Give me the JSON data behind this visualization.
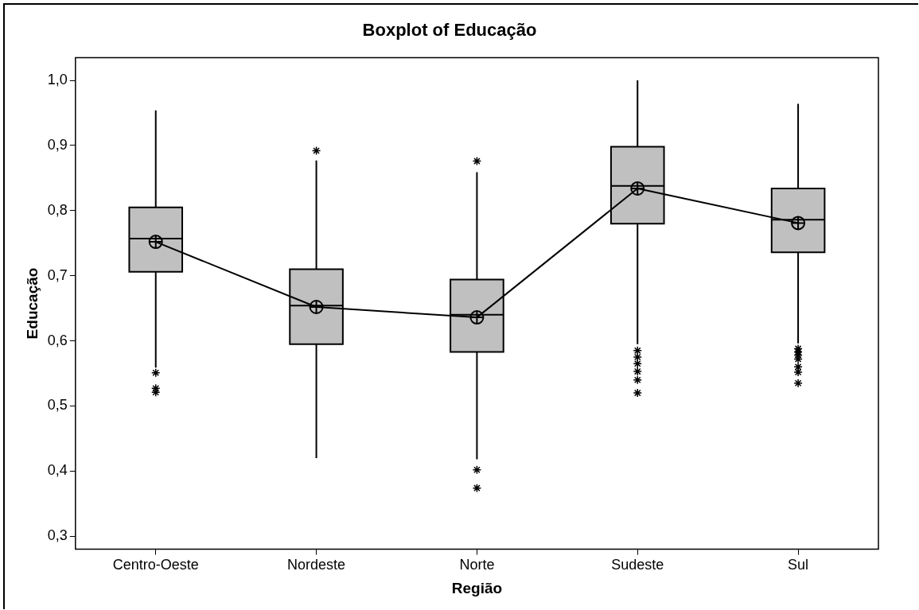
{
  "chart_data": {
    "type": "box",
    "title": "Boxplot of Educação",
    "xlabel": "Região",
    "ylabel": "Educação",
    "categories": [
      "Centro-Oeste",
      "Nordeste",
      "Norte",
      "Sudeste",
      "Sul"
    ],
    "color": "#c0c0c0",
    "marker": "star",
    "grid": false,
    "ylim": [
      0.28,
      1.035
    ],
    "yticks": [
      {
        "value": 0.3,
        "label": "0,3"
      },
      {
        "value": 0.4,
        "label": "0,4"
      },
      {
        "value": 0.5,
        "label": "0,5"
      },
      {
        "value": 0.6,
        "label": "0,6"
      },
      {
        "value": 0.7,
        "label": "0,7"
      },
      {
        "value": 0.8,
        "label": "0,8"
      },
      {
        "value": 0.9,
        "label": "0,9"
      },
      {
        "value": 1.0,
        "label": "1,0"
      }
    ],
    "boxes": [
      {
        "low": 0.559,
        "q1": 0.706,
        "median": 0.757,
        "q3": 0.805,
        "high": 0.954,
        "mean": 0.752,
        "outliers": [
          0.551,
          0.527,
          0.521
        ]
      },
      {
        "low": 0.42,
        "q1": 0.595,
        "median": 0.654,
        "q3": 0.71,
        "high": 0.877,
        "mean": 0.652,
        "outliers": [
          0.892
        ]
      },
      {
        "low": 0.418,
        "q1": 0.583,
        "median": 0.64,
        "q3": 0.694,
        "high": 0.859,
        "mean": 0.636,
        "outliers": [
          0.876,
          0.402,
          0.374
        ]
      },
      {
        "low": 0.595,
        "q1": 0.78,
        "median": 0.838,
        "q3": 0.898,
        "high": 1.0,
        "mean": 0.834,
        "outliers": [
          0.585,
          0.575,
          0.565,
          0.553,
          0.54,
          0.52
        ]
      },
      {
        "low": 0.596,
        "q1": 0.736,
        "median": 0.786,
        "q3": 0.834,
        "high": 0.964,
        "mean": 0.781,
        "outliers": [
          0.588,
          0.583,
          0.578,
          0.572,
          0.56,
          0.552,
          0.535
        ]
      }
    ],
    "series": [
      {
        "type": "line",
        "color": "#000000",
        "marker": "none",
        "values": [
          0.752,
          0.652,
          0.636,
          0.834,
          0.781
        ]
      }
    ]
  }
}
